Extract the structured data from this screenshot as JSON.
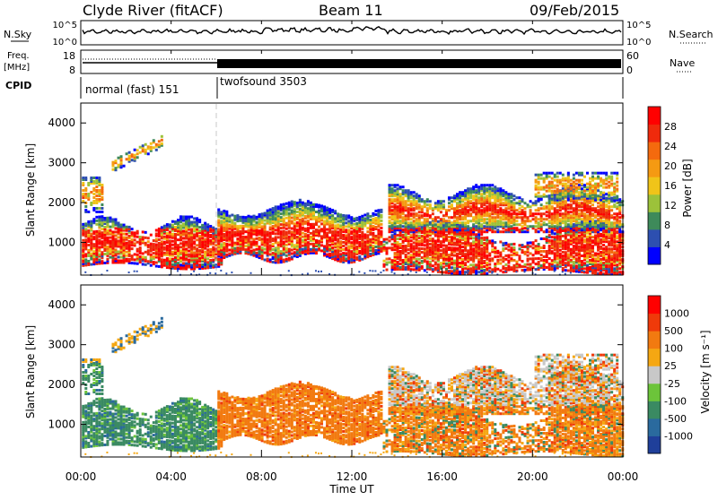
{
  "header": {
    "station": "Clyde River (fitACF)",
    "beam": "Beam 11",
    "date": "09/Feb/2015"
  },
  "top_panels": {
    "nsky": {
      "label": "N.Sky",
      "right_label": "N.Search",
      "ticks": [
        "10^5",
        "10^0"
      ]
    },
    "freq": {
      "label": "Freq.",
      "unit": "[MHz]",
      "left_ticks": [
        "18",
        "8"
      ],
      "right_ticks": [
        "60",
        "0"
      ],
      "right_label": "Nave"
    },
    "cpid": {
      "label": "CPID",
      "modes": [
        {
          "name": "normal (fast) 151",
          "start_hour": 0,
          "end_hour": 6
        },
        {
          "name": "twofsound 3503",
          "start_hour": 6,
          "end_hour": 24
        }
      ]
    }
  },
  "chart_data": [
    {
      "type": "heatmap",
      "title": "",
      "xlabel": "",
      "ylabel": "Slant Range [km]",
      "x_range_hours": [
        0,
        24
      ],
      "ylim": [
        180,
        4500
      ],
      "y_ticks": [
        "1000",
        "2000",
        "3000",
        "4000"
      ],
      "colorbar": {
        "label": "Power [dB]",
        "ticks": [
          "4",
          "8",
          "12",
          "16",
          "20",
          "24",
          "28"
        ],
        "colors": [
          "#0000ff",
          "#2d4fb0",
          "#3e8a5a",
          "#9cc23a",
          "#f0c419",
          "#f59a12",
          "#f46a0e",
          "#ef2a0c",
          "#ff0000"
        ]
      }
    },
    {
      "type": "heatmap",
      "title": "",
      "xlabel": "Time UT",
      "ylabel": "Slant Range [km]",
      "x_range_hours": [
        0,
        24
      ],
      "ylim": [
        180,
        4500
      ],
      "y_ticks": [
        "1000",
        "2000",
        "3000",
        "4000"
      ],
      "x_ticks": [
        "00:00",
        "04:00",
        "08:00",
        "12:00",
        "16:00",
        "20:00",
        "00:00"
      ],
      "colorbar": {
        "label": "Velocity [m s⁻¹]",
        "ticks": [
          "1000",
          "500",
          "100",
          "25",
          "-25",
          "-100",
          "-500",
          "-1000"
        ],
        "colors": [
          "#1f3f9a",
          "#2a6a9e",
          "#3a8a62",
          "#6cc43a",
          "#c8c8c8",
          "#f5a712",
          "#f27a10",
          "#ef3a0a",
          "#ff0000"
        ]
      }
    }
  ]
}
